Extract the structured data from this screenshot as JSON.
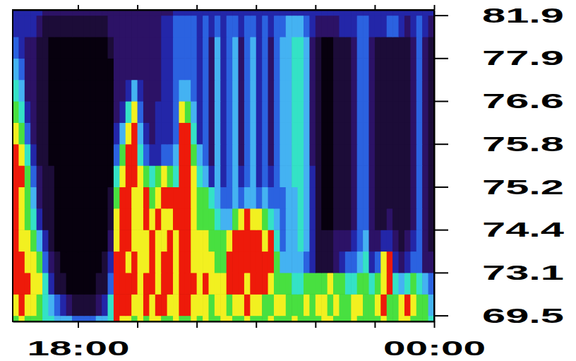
{
  "chart_data": {
    "type": "heatmap",
    "xlim": [
      16.9,
      24
    ],
    "xticks": [
      {
        "value": 18,
        "label": "18:00"
      },
      {
        "value": 19,
        "label": null
      },
      {
        "value": 20,
        "label": null
      },
      {
        "value": 21,
        "label": null
      },
      {
        "value": 22,
        "label": null
      },
      {
        "value": 23,
        "label": null
      },
      {
        "value": 24,
        "label": "00:00"
      }
    ],
    "ylim": [
      69.0,
      82.4
    ],
    "yticks": [
      69.5,
      73.1,
      74.4,
      75.2,
      75.8,
      76.6,
      77.9,
      81.9
    ],
    "zlim": [
      0,
      9
    ],
    "x_bins": [
      16.9,
      17,
      17.1,
      17.2,
      17.3,
      17.4,
      17.5,
      17.6,
      17.7,
      17.8,
      17.9,
      18,
      18.1,
      18.2,
      18.3,
      18.4,
      18.5,
      18.6,
      18.7,
      18.8,
      18.9,
      19,
      19.1,
      19.2,
      19.3,
      19.4,
      19.5,
      19.6,
      19.7,
      19.8,
      19.9,
      20,
      20.1,
      20.2,
      20.3,
      20.4,
      20.5,
      20.6,
      20.7,
      20.8,
      20.9,
      21,
      21.1,
      21.2,
      21.3,
      21.4,
      21.5,
      21.6,
      21.7,
      21.8,
      21.9,
      22,
      22.1,
      22.2,
      22.3,
      22.4,
      22.5,
      22.6,
      22.7,
      22.8,
      22.9,
      23,
      23.1,
      23.2,
      23.3,
      23.4,
      23.5,
      23.6,
      23.7,
      23.8,
      23.9,
      24
    ],
    "y_bins": [
      69.0,
      69.5,
      71.3,
      73.1,
      73.75,
      74.4,
      74.8,
      75.2,
      75.5,
      75.8,
      76.2,
      76.6,
      77.25,
      77.9,
      79.9,
      81.9,
      82.4
    ],
    "cells": [
      [
        7,
        8,
        7,
        7,
        7,
        6,
        6,
        5,
        5,
        5,
        4,
        4,
        4,
        4,
        5,
        5,
        6,
        9,
        8,
        8,
        7,
        8,
        7,
        8,
        8,
        7,
        7,
        8,
        7,
        7,
        8,
        7,
        8,
        7,
        7,
        8,
        8,
        7,
        7,
        8,
        7,
        7,
        7,
        8,
        7,
        7,
        7,
        8,
        7,
        7,
        7,
        7,
        8,
        8,
        7,
        7,
        7,
        8,
        7,
        7,
        7,
        7,
        8,
        7,
        7,
        8,
        8,
        7,
        7,
        7,
        6
      ],
      [
        8,
        9,
        8,
        8,
        7,
        6,
        5,
        4,
        3,
        2,
        1,
        1,
        1,
        1,
        2,
        3,
        6,
        9,
        9,
        9,
        8,
        8,
        9,
        8,
        9,
        9,
        8,
        8,
        9,
        9,
        8,
        8,
        8,
        7,
        8,
        8,
        7,
        8,
        8,
        9,
        8,
        8,
        7,
        7,
        8,
        8,
        7,
        7,
        7,
        8,
        7,
        8,
        8,
        7,
        8,
        7,
        7,
        8,
        8,
        7,
        7,
        8,
        9,
        7,
        7,
        8,
        9,
        8,
        7,
        7,
        5
      ],
      [
        9,
        9,
        9,
        8,
        8,
        6,
        3,
        1,
        1,
        0,
        0,
        0,
        0,
        0,
        1,
        1,
        4,
        9,
        9,
        9,
        9,
        8,
        9,
        9,
        8,
        9,
        9,
        8,
        9,
        9,
        9,
        8,
        9,
        8,
        8,
        8,
        9,
        9,
        9,
        8,
        9,
        9,
        9,
        8,
        7,
        7,
        7,
        6,
        6,
        7,
        7,
        7,
        7,
        8,
        7,
        7,
        6,
        6,
        7,
        7,
        6,
        7,
        8,
        9,
        6,
        5,
        6,
        7,
        6,
        5,
        4
      ],
      [
        9,
        9,
        8,
        8,
        7,
        4,
        2,
        1,
        0,
        0,
        0,
        0,
        0,
        0,
        0,
        1,
        3,
        9,
        9,
        8,
        9,
        8,
        8,
        9,
        8,
        9,
        9,
        8,
        9,
        9,
        8,
        8,
        8,
        8,
        7,
        7,
        9,
        9,
        9,
        9,
        9,
        9,
        9,
        9,
        7,
        5,
        5,
        5,
        5,
        4,
        3,
        1,
        1,
        1,
        2,
        3,
        4,
        4,
        5,
        6,
        3,
        4,
        8,
        9,
        3,
        2,
        3,
        4,
        4,
        2,
        2
      ],
      [
        9,
        8,
        8,
        7,
        5,
        3,
        1,
        0,
        0,
        0,
        0,
        0,
        0,
        0,
        0,
        0,
        2,
        8,
        9,
        9,
        8,
        8,
        8,
        9,
        8,
        8,
        9,
        8,
        9,
        9,
        8,
        8,
        8,
        7,
        7,
        7,
        8,
        9,
        9,
        9,
        9,
        9,
        8,
        9,
        6,
        4,
        5,
        5,
        6,
        5,
        3,
        1,
        1,
        1,
        2,
        2,
        2,
        3,
        4,
        5,
        2,
        2,
        3,
        3,
        2,
        1,
        2,
        3,
        4,
        2,
        1
      ],
      [
        9,
        8,
        7,
        6,
        3,
        1,
        1,
        0,
        0,
        0,
        0,
        0,
        0,
        0,
        0,
        0,
        1,
        8,
        9,
        9,
        8,
        8,
        9,
        8,
        9,
        8,
        8,
        9,
        9,
        9,
        8,
        7,
        7,
        7,
        6,
        5,
        5,
        7,
        8,
        9,
        8,
        8,
        7,
        6,
        5,
        4,
        5,
        5,
        6,
        5,
        3,
        1,
        0,
        0,
        1,
        1,
        1,
        2,
        4,
        4,
        2,
        1,
        1,
        2,
        1,
        1,
        1,
        2,
        4,
        2,
        1
      ],
      [
        9,
        8,
        7,
        5,
        2,
        1,
        1,
        0,
        0,
        0,
        0,
        0,
        0,
        0,
        0,
        0,
        1,
        7,
        9,
        9,
        8,
        8,
        9,
        7,
        8,
        9,
        9,
        9,
        9,
        9,
        8,
        7,
        7,
        6,
        5,
        4,
        4,
        5,
        4,
        5,
        5,
        4,
        5,
        4,
        4,
        4,
        5,
        5,
        6,
        5,
        3,
        1,
        0,
        0,
        1,
        1,
        1,
        2,
        4,
        4,
        2,
        1,
        1,
        1,
        1,
        1,
        1,
        2,
        4,
        2,
        1
      ],
      [
        9,
        9,
        7,
        4,
        2,
        1,
        1,
        0,
        0,
        0,
        0,
        0,
        0,
        0,
        0,
        0,
        0,
        6,
        8,
        9,
        9,
        8,
        7,
        6,
        7,
        8,
        7,
        6,
        9,
        9,
        8,
        6,
        5,
        3,
        5,
        3,
        4,
        5,
        3,
        4,
        5,
        3,
        4,
        3,
        4,
        5,
        5,
        6,
        6,
        5,
        3,
        1,
        0,
        0,
        1,
        1,
        1,
        2,
        4,
        4,
        2,
        1,
        1,
        1,
        1,
        1,
        1,
        2,
        4,
        2,
        1
      ],
      [
        9,
        8,
        6,
        3,
        1,
        1,
        0,
        0,
        0,
        0,
        0,
        0,
        0,
        0,
        0,
        0,
        0,
        4,
        7,
        9,
        9,
        6,
        4,
        3,
        3,
        4,
        4,
        5,
        9,
        9,
        7,
        5,
        4,
        2,
        5,
        3,
        4,
        5,
        2,
        4,
        5,
        3,
        4,
        2,
        4,
        5,
        5,
        6,
        6,
        5,
        2,
        1,
        0,
        0,
        1,
        1,
        1,
        2,
        4,
        4,
        2,
        1,
        1,
        1,
        1,
        1,
        1,
        2,
        4,
        2,
        1
      ],
      [
        8,
        7,
        4,
        2,
        1,
        1,
        0,
        0,
        0,
        0,
        0,
        0,
        0,
        0,
        0,
        0,
        0,
        3,
        5,
        8,
        9,
        5,
        3,
        2,
        3,
        3,
        3,
        4,
        9,
        9,
        6,
        3,
        4,
        2,
        5,
        3,
        4,
        5,
        2,
        4,
        5,
        3,
        4,
        2,
        4,
        5,
        5,
        6,
        6,
        5,
        2,
        1,
        0,
        0,
        1,
        1,
        1,
        2,
        4,
        4,
        2,
        1,
        1,
        1,
        1,
        1,
        1,
        2,
        4,
        2,
        1
      ],
      [
        7,
        6,
        3,
        2,
        1,
        1,
        0,
        0,
        0,
        0,
        0,
        0,
        0,
        0,
        0,
        0,
        0,
        2,
        3,
        6,
        8,
        4,
        2,
        2,
        3,
        3,
        3,
        4,
        8,
        7,
        5,
        3,
        4,
        2,
        5,
        3,
        4,
        5,
        2,
        4,
        5,
        3,
        4,
        2,
        4,
        5,
        5,
        6,
        6,
        5,
        2,
        1,
        0,
        0,
        1,
        1,
        1,
        2,
        4,
        4,
        2,
        1,
        1,
        1,
        1,
        1,
        1,
        2,
        4,
        2,
        1
      ],
      [
        6,
        5,
        2,
        2,
        1,
        1,
        0,
        0,
        0,
        0,
        0,
        0,
        0,
        0,
        0,
        0,
        0,
        2,
        2,
        3,
        5,
        3,
        2,
        2,
        2,
        3,
        3,
        4,
        5,
        5,
        4,
        3,
        4,
        2,
        5,
        3,
        4,
        5,
        2,
        4,
        5,
        3,
        4,
        2,
        4,
        5,
        5,
        6,
        6,
        5,
        2,
        1,
        0,
        0,
        1,
        1,
        1,
        2,
        4,
        4,
        2,
        1,
        1,
        1,
        1,
        1,
        1,
        2,
        4,
        2,
        1
      ],
      [
        5,
        4,
        2,
        2,
        1,
        1,
        0,
        0,
        0,
        0,
        0,
        0,
        0,
        0,
        0,
        0,
        0,
        2,
        2,
        2,
        2,
        2,
        2,
        2,
        2,
        3,
        3,
        4,
        4,
        4,
        4,
        3,
        4,
        2,
        5,
        3,
        4,
        5,
        2,
        4,
        5,
        3,
        4,
        2,
        4,
        5,
        5,
        6,
        6,
        5,
        2,
        1,
        0,
        0,
        1,
        1,
        1,
        2,
        4,
        4,
        2,
        1,
        1,
        1,
        1,
        1,
        1,
        2,
        4,
        2,
        1
      ],
      [
        4,
        3,
        2,
        2,
        1,
        1,
        0,
        0,
        0,
        0,
        0,
        0,
        0,
        0,
        0,
        0,
        1,
        2,
        2,
        2,
        2,
        2,
        2,
        2,
        2,
        3,
        3,
        4,
        4,
        4,
        4,
        3,
        4,
        2,
        5,
        3,
        4,
        5,
        2,
        4,
        5,
        3,
        4,
        2,
        4,
        5,
        5,
        6,
        6,
        5,
        2,
        1,
        0,
        0,
        1,
        1,
        1,
        2,
        4,
        4,
        2,
        1,
        1,
        1,
        1,
        1,
        1,
        2,
        4,
        2,
        1
      ],
      [
        3,
        3,
        3,
        3,
        2,
        1,
        1,
        1,
        1,
        1,
        1,
        1,
        1,
        1,
        1,
        1,
        2,
        2,
        2,
        2,
        2,
        2,
        2,
        2,
        2,
        3,
        3,
        4,
        4,
        4,
        4,
        3,
        4,
        3,
        4,
        3,
        4,
        4,
        3,
        4,
        4,
        3,
        4,
        3,
        4,
        4,
        5,
        5,
        5,
        4,
        3,
        2,
        2,
        2,
        2,
        3,
        3,
        3,
        4,
        4,
        3,
        3,
        3,
        4,
        4,
        3,
        2,
        3,
        4,
        3,
        2
      ],
      [
        3,
        3,
        3,
        3,
        3,
        2,
        2,
        2,
        2,
        2,
        2,
        2,
        2,
        2,
        2,
        2,
        2,
        2,
        2,
        2,
        2,
        2,
        2,
        2,
        2,
        2,
        2,
        3,
        3,
        3,
        3,
        3,
        3,
        3,
        3,
        3,
        3,
        3,
        3,
        3,
        3,
        3,
        3,
        3,
        3,
        3,
        3,
        3,
        3,
        3,
        3,
        3,
        3,
        3,
        3,
        3,
        3,
        3,
        3,
        3,
        3,
        3,
        3,
        3,
        3,
        3,
        3,
        3,
        3,
        3,
        3
      ]
    ]
  }
}
